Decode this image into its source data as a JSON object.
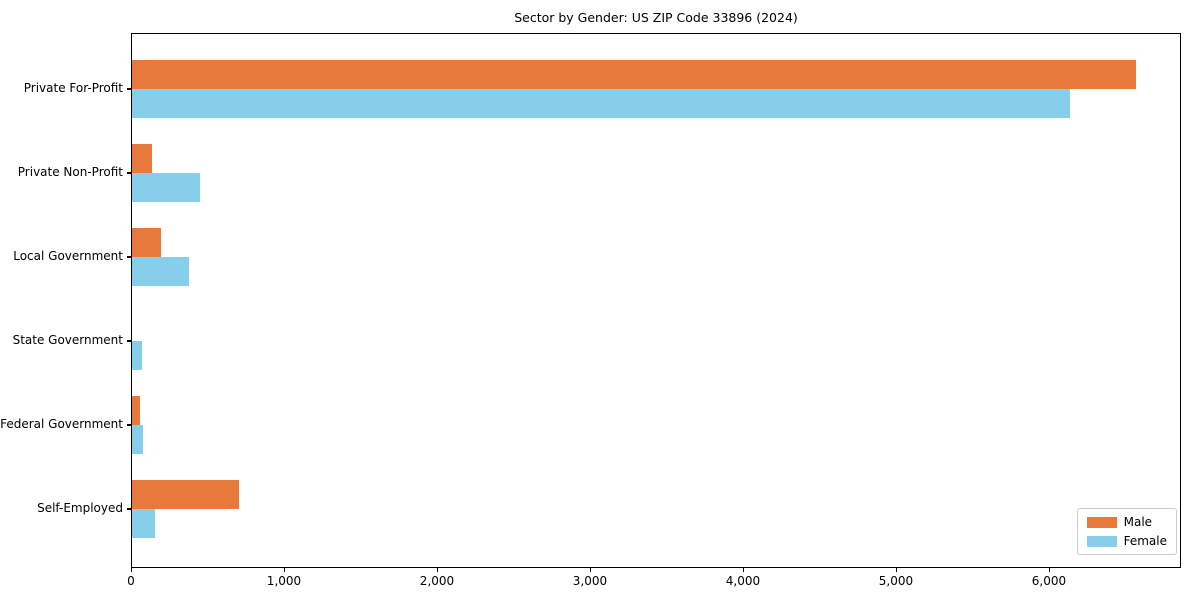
{
  "title": "Sector by Gender: US ZIP Code 33896 (2024)",
  "chart_data": {
    "type": "bar",
    "orientation": "horizontal",
    "title": "Sector by Gender: US ZIP Code 33896 (2024)",
    "categories": [
      "Private For-Profit",
      "Private Non-Profit",
      "Local Government",
      "State Government",
      "Federal Government",
      "Self-Employed"
    ],
    "series": [
      {
        "name": "Male",
        "color": "#e8793d",
        "values": [
          6560,
          130,
          190,
          0,
          55,
          700
        ]
      },
      {
        "name": "Female",
        "color": "#87ceeb",
        "values": [
          6130,
          445,
          375,
          67,
          72,
          150
        ]
      }
    ],
    "xlabel": "",
    "ylabel": "",
    "xlim": [
      0,
      6863
    ],
    "xticks": [
      0,
      1000,
      2000,
      3000,
      4000,
      5000,
      6000
    ],
    "xtick_labels": [
      "0",
      "1,000",
      "2,000",
      "3,000",
      "4,000",
      "5,000",
      "6,000"
    ],
    "legend": {
      "position": "lower right",
      "entries": [
        "Male",
        "Female"
      ]
    },
    "grid": false
  }
}
